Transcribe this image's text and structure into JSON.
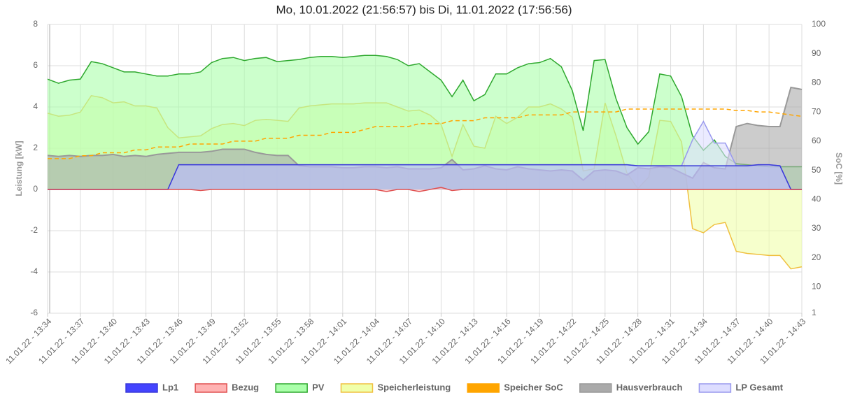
{
  "chart_data": {
    "type": "area",
    "title": "Mo, 10.01.2022 (21:56:57) bis Di, 11.01.2022 (17:56:56)",
    "ylabel": "Leistung [kW]",
    "y2label": "SoC [%]",
    "categories": [
      "11.01.22 - 13:34",
      null,
      null,
      "11.01.22 - 13:37",
      null,
      null,
      "11.01.22 - 13:40",
      null,
      null,
      "11.01.22 - 13:43",
      null,
      null,
      "11.01.22 - 13:46",
      null,
      null,
      "11.01.22 - 13:49",
      null,
      null,
      "11.01.22 - 13:52",
      null,
      null,
      "11.01.22 - 13:55",
      null,
      null,
      "11.01.22 - 13:58",
      null,
      null,
      "11.01.22 - 14:01",
      null,
      null,
      "11.01.22 - 14:04",
      null,
      null,
      "11.01.22 - 14:07",
      null,
      null,
      "11.01.22 - 14:10",
      null,
      null,
      "11.01.22 - 14:13",
      null,
      null,
      "11.01.22 - 14:16",
      null,
      null,
      "11.01.22 - 14:19",
      null,
      null,
      "11.01.22 - 14:22",
      null,
      null,
      "11.01.22 - 14:25",
      null,
      null,
      "11.01.22 - 14:28",
      null,
      null,
      "11.01.22 - 14:31",
      null,
      null,
      "11.01.22 - 14:34",
      null,
      null,
      "11.01.22 - 14:37",
      null,
      null,
      "11.01.22 - 14:40",
      null,
      null,
      "11.01.22 - 14:43"
    ],
    "ylim": [
      -6,
      8
    ],
    "yticks": [
      -6,
      -4,
      -2,
      0,
      2,
      4,
      6,
      8
    ],
    "y2lim": [
      1,
      100
    ],
    "y2ticks": [
      1,
      10,
      20,
      30,
      40,
      50,
      60,
      70,
      80,
      90,
      100
    ],
    "grid": true,
    "legend": "bottom",
    "series": [
      {
        "name": "Lp1",
        "color": "#3a3ad8",
        "fill": "#4444ff",
        "values": [
          0,
          0,
          0,
          0,
          0,
          0,
          0,
          0,
          0,
          0,
          0,
          0,
          1.2,
          1.2,
          1.2,
          1.2,
          1.2,
          1.2,
          1.2,
          1.2,
          1.2,
          1.2,
          1.2,
          1.2,
          1.2,
          1.2,
          1.2,
          1.2,
          1.2,
          1.2,
          1.2,
          1.2,
          1.2,
          1.2,
          1.2,
          1.2,
          1.2,
          1.2,
          1.2,
          1.2,
          1.2,
          1.2,
          1.2,
          1.2,
          1.2,
          1.2,
          1.2,
          1.2,
          1.2,
          1.2,
          1.2,
          1.2,
          1.2,
          1.2,
          1.15,
          1.15,
          1.15,
          1.15,
          1.15,
          1.15,
          1.15,
          1.15,
          1.15,
          1.15,
          1.15,
          1.2,
          1.2,
          1.15,
          0,
          0
        ]
      },
      {
        "name": "Bezug",
        "color": "#e05050",
        "fill": "#ffb3b3",
        "values": [
          0,
          0,
          0,
          0,
          0,
          0,
          0,
          0,
          0,
          0,
          0,
          0,
          0,
          0,
          -0.05,
          0,
          0,
          0,
          0,
          0,
          0,
          0,
          0,
          0,
          0,
          0,
          0,
          0,
          0,
          0,
          0,
          -0.1,
          0,
          0,
          -0.1,
          0,
          0.1,
          -0.05,
          0,
          0,
          0,
          0,
          0,
          0,
          0,
          0,
          0,
          0,
          0,
          0,
          0,
          0,
          0,
          0,
          0,
          0,
          0,
          0,
          0,
          0,
          0,
          0,
          0,
          0,
          0,
          0,
          0,
          0,
          0,
          0
        ]
      },
      {
        "name": "PV",
        "color": "#2ea82e",
        "fill": "#aaffaa",
        "values": [
          5.35,
          5.15,
          5.3,
          5.35,
          6.2,
          6.1,
          5.9,
          5.7,
          5.7,
          5.6,
          5.5,
          5.5,
          5.6,
          5.6,
          5.7,
          6.15,
          6.35,
          6.4,
          6.25,
          6.35,
          6.4,
          6.2,
          6.25,
          6.3,
          6.4,
          6.45,
          6.45,
          6.4,
          6.45,
          6.5,
          6.5,
          6.45,
          6.3,
          6.0,
          6.1,
          5.7,
          5.3,
          4.5,
          5.3,
          4.3,
          4.6,
          5.6,
          5.6,
          5.9,
          6.1,
          6.15,
          6.35,
          5.95,
          4.8,
          2.85,
          6.25,
          6.3,
          4.4,
          3.0,
          2.2,
          2.8,
          5.6,
          5.5,
          4.5,
          2.6,
          1.9,
          2.4,
          1.6,
          1.25,
          1.2,
          1.15,
          1.1,
          1.1,
          1.1,
          1.1
        ]
      },
      {
        "name": "Speicherleistung",
        "color": "#f0c040",
        "fill": "#f0ffaa",
        "values": [
          3.7,
          3.55,
          3.6,
          3.75,
          4.55,
          4.45,
          4.2,
          4.25,
          4.05,
          4.05,
          3.95,
          3.0,
          2.5,
          2.55,
          2.6,
          2.95,
          3.15,
          3.2,
          3.1,
          3.35,
          3.4,
          3.35,
          3.3,
          3.95,
          4.05,
          4.1,
          4.15,
          4.15,
          4.15,
          4.2,
          4.2,
          4.2,
          4.0,
          3.8,
          3.85,
          3.6,
          3.15,
          1.6,
          3.15,
          2.1,
          2.0,
          3.55,
          3.2,
          3.5,
          4.0,
          4.0,
          4.15,
          3.9,
          3.5,
          0.9,
          1.0,
          4.2,
          2.6,
          0.8,
          0.05,
          0.6,
          3.35,
          3.3,
          2.3,
          -1.9,
          -2.1,
          -1.7,
          -1.6,
          -3.0,
          -3.1,
          -3.15,
          -3.2,
          -3.2,
          -3.85,
          -3.75
        ]
      },
      {
        "name": "Speicher SoC",
        "color": "#ffa500",
        "axis": "y2",
        "dashed": true,
        "values": [
          54,
          54,
          54,
          55,
          55,
          56,
          56,
          56,
          57,
          57,
          58,
          58,
          58,
          59,
          59,
          59,
          59,
          60,
          60,
          60,
          61,
          61,
          61,
          62,
          62,
          62,
          63,
          63,
          63,
          64,
          65,
          65,
          65,
          65,
          66,
          66,
          66,
          67,
          67,
          67,
          68,
          68,
          68,
          68,
          69,
          69,
          69,
          69,
          70,
          70,
          70,
          70,
          70,
          71,
          71,
          71,
          71,
          71,
          71,
          71,
          71,
          71,
          71,
          70.5,
          70.5,
          70,
          70,
          69.5,
          69,
          68.5
        ]
      },
      {
        "name": "Hausverbrauch",
        "color": "#999999",
        "fill": "#aaaaaa",
        "values": [
          1.65,
          1.6,
          1.65,
          1.6,
          1.65,
          1.65,
          1.7,
          1.6,
          1.65,
          1.6,
          1.7,
          1.75,
          1.8,
          1.8,
          1.8,
          1.85,
          1.95,
          1.95,
          1.95,
          1.8,
          1.7,
          1.65,
          1.65,
          1.15,
          1.1,
          1.1,
          1.1,
          1.05,
          1.05,
          1.1,
          1.1,
          1.05,
          1.1,
          1.0,
          1.0,
          1.0,
          1.05,
          1.45,
          0.95,
          1.0,
          1.15,
          1.0,
          0.95,
          1.1,
          1.0,
          0.95,
          0.9,
          0.95,
          0.9,
          0.45,
          0.9,
          0.95,
          0.9,
          0.7,
          1.05,
          1.0,
          1.1,
          1.05,
          0.8,
          0.55,
          1.3,
          1.05,
          1.0,
          3.05,
          3.2,
          3.1,
          3.05,
          3.05,
          4.95,
          4.85
        ]
      },
      {
        "name": "LP Gesamt",
        "color": "#9999ee",
        "fill": "#ddddff",
        "values": [
          0,
          0,
          0,
          0,
          0,
          0,
          0,
          0,
          0,
          0,
          0,
          0,
          1.2,
          1.2,
          1.2,
          1.2,
          1.2,
          1.2,
          1.2,
          1.2,
          1.2,
          1.2,
          1.2,
          1.2,
          1.2,
          1.2,
          1.2,
          1.2,
          1.2,
          1.2,
          1.2,
          1.2,
          1.2,
          1.2,
          1.2,
          1.2,
          1.2,
          1.2,
          1.2,
          1.2,
          1.2,
          1.2,
          1.2,
          1.2,
          1.2,
          1.2,
          1.2,
          1.2,
          1.2,
          1.2,
          1.2,
          1.2,
          1.2,
          1.2,
          1.15,
          1.15,
          1.15,
          1.15,
          1.15,
          2.4,
          3.3,
          2.25,
          2.25,
          1.15,
          1.15,
          1.2,
          1.2,
          1.15,
          0,
          0
        ]
      }
    ]
  }
}
